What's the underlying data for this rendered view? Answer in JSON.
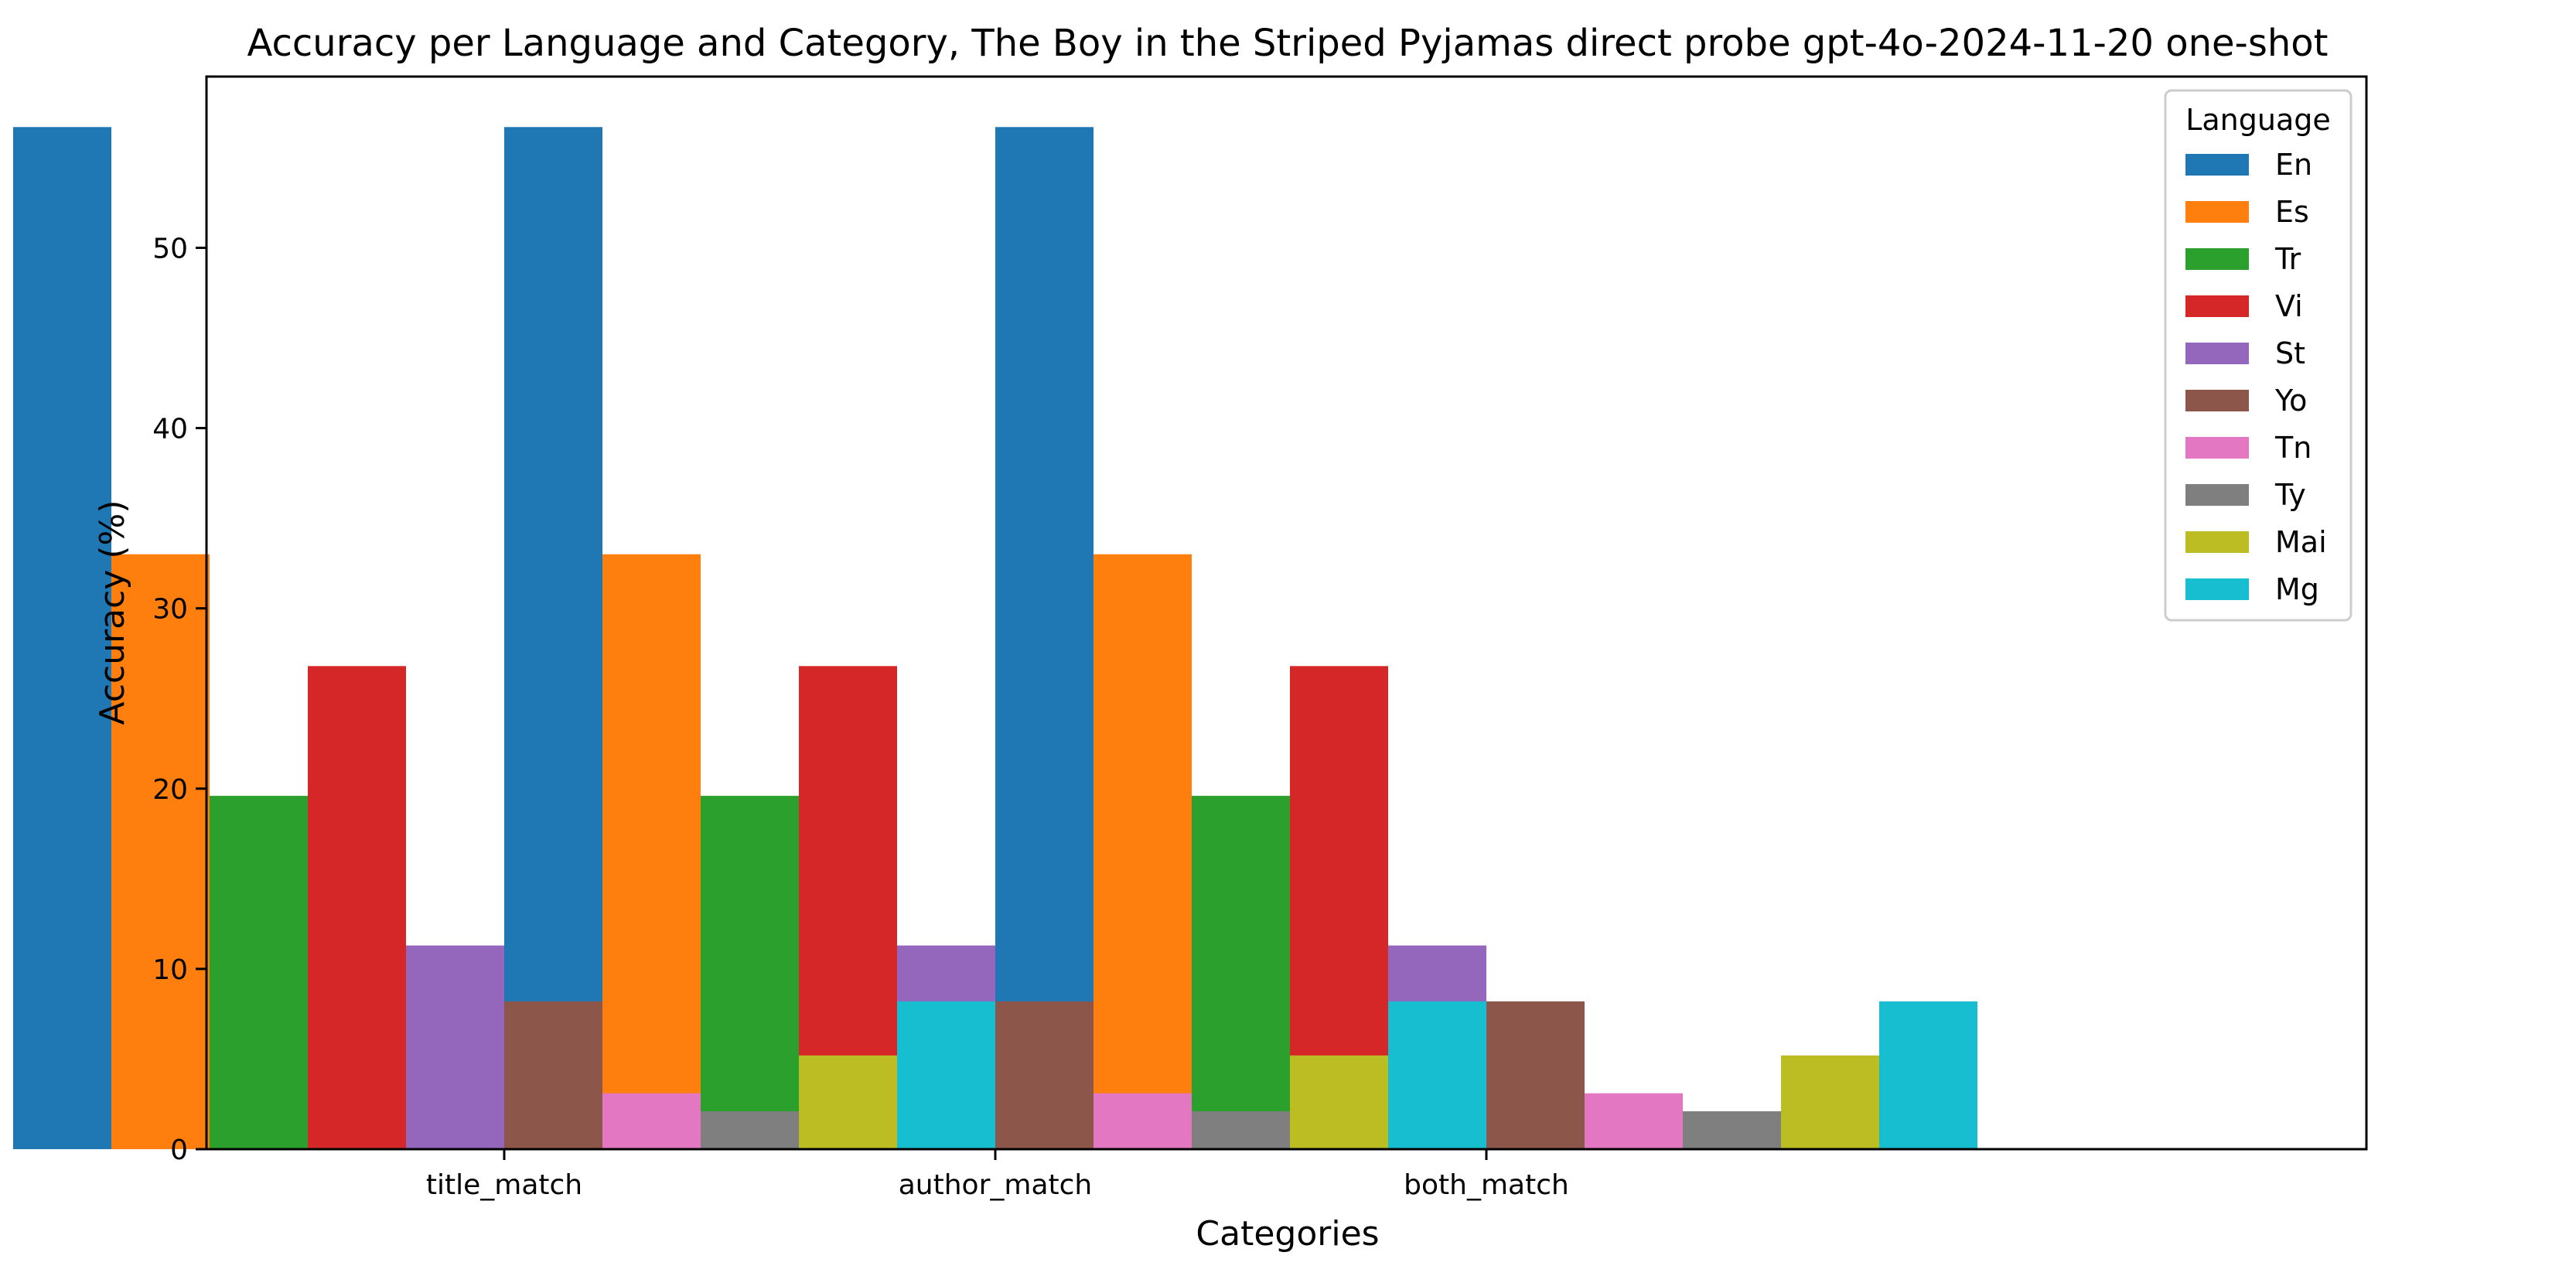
{
  "chart_data": {
    "type": "bar",
    "title": "Accuracy per Language and Category, The Boy in the Striped Pyjamas direct probe gpt-4o-2024-11-20 one-shot",
    "xlabel": "Categories",
    "ylabel": "Accuracy (%)",
    "ylim": [
      0,
      59.5
    ],
    "yticks": [
      0,
      10,
      20,
      30,
      40,
      50
    ],
    "grid": false,
    "categories": [
      "title_match",
      "author_match",
      "both_match"
    ],
    "legend": {
      "title": "Language",
      "position": "top-right"
    },
    "series": [
      {
        "name": "En",
        "color": "#1f77b4",
        "values": [
          56.7,
          56.7,
          56.7
        ]
      },
      {
        "name": "Es",
        "color": "#ff7f0e",
        "values": [
          33.0,
          33.0,
          33.0
        ]
      },
      {
        "name": "Tr",
        "color": "#2ca02c",
        "values": [
          19.6,
          19.6,
          19.6
        ]
      },
      {
        "name": "Vi",
        "color": "#d62728",
        "values": [
          26.8,
          26.8,
          26.8
        ]
      },
      {
        "name": "St",
        "color": "#9467bd",
        "values": [
          11.3,
          11.3,
          11.3
        ]
      },
      {
        "name": "Yo",
        "color": "#8c564b",
        "values": [
          8.2,
          8.2,
          8.2
        ]
      },
      {
        "name": "Tn",
        "color": "#e377c2",
        "values": [
          3.1,
          3.1,
          3.1
        ]
      },
      {
        "name": "Ty",
        "color": "#7f7f7f",
        "values": [
          2.1,
          2.1,
          2.1
        ]
      },
      {
        "name": "Mai",
        "color": "#bcbd22",
        "values": [
          5.2,
          5.2,
          5.2
        ]
      },
      {
        "name": "Mg",
        "color": "#17becf",
        "values": [
          8.2,
          8.2,
          8.2
        ]
      }
    ]
  }
}
